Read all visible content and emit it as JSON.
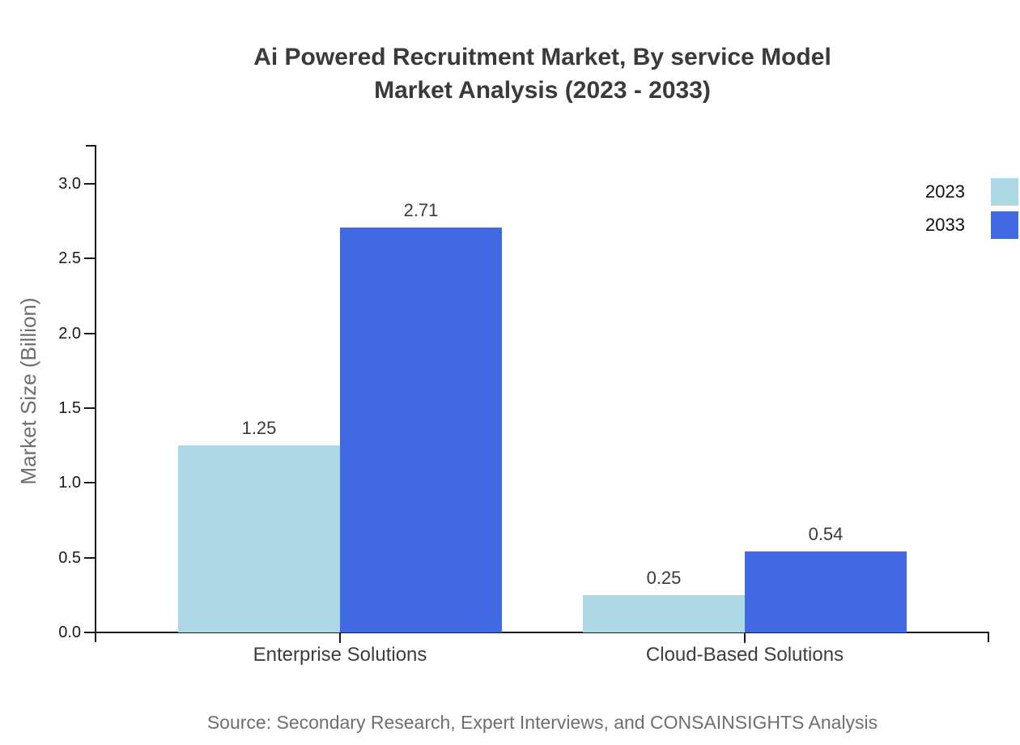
{
  "title": {
    "line1": "Ai Powered Recruitment Market, By service Model",
    "line2": "Market Analysis (2023 - 2033)"
  },
  "source": "Source: Secondary Research, Expert Interviews, and CONSAINSIGHTS Analysis",
  "chart_data": {
    "type": "bar",
    "categories": [
      "Enterprise Solutions",
      "Cloud-Based Solutions"
    ],
    "series": [
      {
        "name": "2023",
        "color": "#ADD8E6",
        "values": [
          1.25,
          0.25
        ]
      },
      {
        "name": "2033",
        "color": "#4169E1",
        "values": [
          2.71,
          0.54
        ]
      }
    ],
    "value_labels": {
      "decimals": 1.25,
      "all": [
        "1.25",
        "2.71",
        "0.25",
        "0.54"
      ]
    },
    "title": "Ai Powered Recruitment Market, By service Model Market Analysis (2023 - 2033)",
    "xlabel": "",
    "ylabel": "Market Size (Billion)",
    "ytick_labels": [
      "0.0",
      "0.5",
      "1.0",
      "1.5",
      "2.0",
      "2.5",
      "3.0"
    ],
    "ylim": [
      0,
      3.25
    ],
    "grid": false,
    "legend_position": "upper-right-outside",
    "axis_color": "#1a1a1a"
  }
}
